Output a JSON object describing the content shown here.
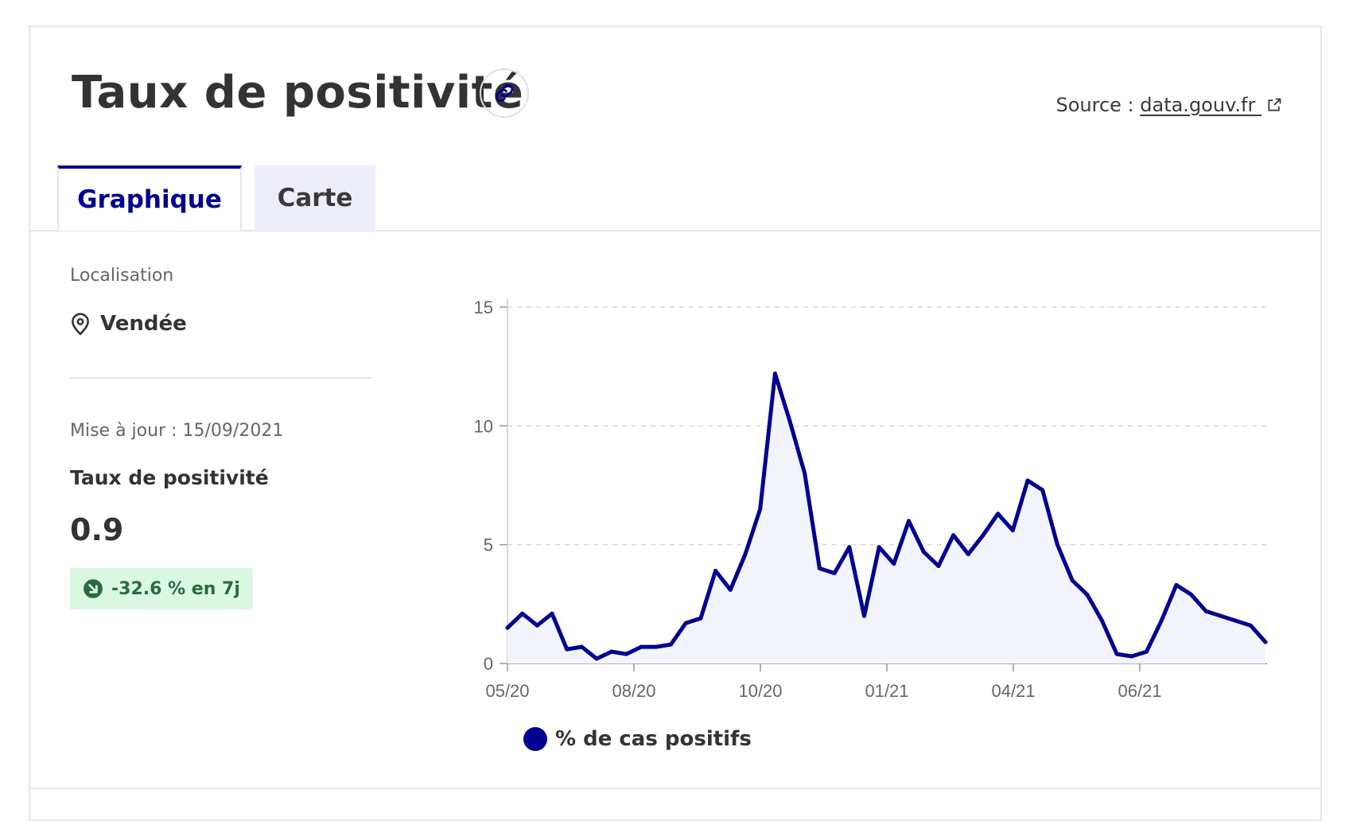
{
  "header": {
    "title": "Taux de positivité",
    "link_icon": "link-icon",
    "source_prefix": "Source : ",
    "source_link": "data.gouv.fr",
    "external_icon": "external-link-icon"
  },
  "tabs": [
    {
      "label": "Graphique",
      "active": true
    },
    {
      "label": "Carte",
      "active": false
    }
  ],
  "sidebar": {
    "location_label": "Localisation",
    "location_icon": "map-pin-icon",
    "location_value": "Vendée",
    "updated": "Mise à jour : 15/09/2021",
    "indicator_title": "Taux de positivité",
    "indicator_value": "0.9",
    "trend_icon": "arrow-down-right-icon",
    "trend_text": "-32.6 % en 7j"
  },
  "colors": {
    "accent": "#000091",
    "fill": "#f3f3fc",
    "badge_bg": "#dbf8e3",
    "badge_text": "#2a6b3d"
  },
  "chart_data": {
    "type": "area",
    "x_ticks": [
      "05/20",
      "08/20",
      "10/20",
      "01/21",
      "04/21",
      "06/21"
    ],
    "y_ticks": [
      0,
      5,
      10,
      15
    ],
    "ylim": [
      0,
      15
    ],
    "grid": true,
    "legend": "bottom",
    "series": [
      {
        "name": "% de cas positifs",
        "color": "#000091",
        "values": [
          1.5,
          2.1,
          1.6,
          2.1,
          0.6,
          0.7,
          0.2,
          0.5,
          0.4,
          0.7,
          0.7,
          0.8,
          1.7,
          1.9,
          3.9,
          3.1,
          4.6,
          6.5,
          12.2,
          10.2,
          8.0,
          4.0,
          3.8,
          4.9,
          2.0,
          4.9,
          4.2,
          6.0,
          4.7,
          4.1,
          5.4,
          4.6,
          5.4,
          6.3,
          5.6,
          7.7,
          7.3,
          5.0,
          3.5,
          2.9,
          1.8,
          0.4,
          0.3,
          0.5,
          1.8,
          3.3,
          2.9,
          2.2,
          2.0,
          1.8,
          1.6,
          0.9
        ]
      }
    ]
  }
}
